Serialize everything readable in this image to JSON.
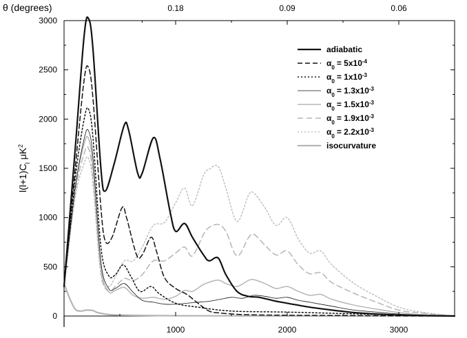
{
  "chart_data": {
    "type": "line",
    "xlabel": "",
    "ylabel": "l(l+1)C",
    "ylabel_sub": "l",
    "ylabel_unit": "μK",
    "ylabel_sup": "2",
    "top_axis_title": "θ (degrees)",
    "xlim": [
      0,
      3500
    ],
    "ylim": [
      0,
      3000
    ],
    "x_ticks": [
      1000,
      2000,
      3000
    ],
    "x_tick_labels": [
      "1000",
      "2000",
      "3000"
    ],
    "y_ticks": [
      0,
      500,
      1000,
      1500,
      2000,
      2500,
      3000
    ],
    "y_tick_labels": [
      "0",
      "500",
      "1000",
      "1500",
      "2000",
      "2500",
      "3000"
    ],
    "top_ticks": [
      {
        "label": "0.18",
        "x": 1000
      },
      {
        "label": "0.09",
        "x": 2000
      },
      {
        "label": "0.06",
        "x": 3000
      }
    ],
    "grid": false,
    "legend_position": "top-right",
    "series": [
      {
        "name": "adiabatic",
        "prefix": "",
        "sub": "",
        "mantissa": "",
        "exp": "",
        "color": "#111111",
        "stroke_width": 2.2,
        "dash": "",
        "x": [
          0,
          100,
          180,
          220,
          260,
          330,
          370,
          450,
          540,
          580,
          660,
          700,
          800,
          860,
          950,
          1000,
          1080,
          1150,
          1250,
          1300,
          1380,
          1450,
          1550,
          1650,
          1750,
          1900,
          2000,
          2200,
          2400,
          2600,
          2800,
          3000,
          3200,
          3500
        ],
        "y": [
          300,
          1700,
          2850,
          3020,
          2700,
          1500,
          1270,
          1550,
          1940,
          1880,
          1450,
          1450,
          1810,
          1600,
          1060,
          860,
          940,
          800,
          620,
          560,
          590,
          420,
          250,
          200,
          190,
          150,
          130,
          90,
          60,
          35,
          20,
          10,
          5,
          0
        ]
      },
      {
        "name": "= 5x10",
        "prefix": "α",
        "sub": "0",
        "mantissa": "= 5x10",
        "exp": "-4",
        "color": "#111111",
        "stroke_width": 1.5,
        "dash": "7,4",
        "x": [
          0,
          100,
          180,
          220,
          260,
          330,
          370,
          430,
          520,
          560,
          650,
          700,
          780,
          830,
          900,
          1000,
          1100,
          1200,
          1300,
          1400,
          1600,
          1800,
          2000,
          2500,
          3000,
          3500
        ],
        "y": [
          300,
          1500,
          2400,
          2520,
          2200,
          1100,
          760,
          800,
          1100,
          1000,
          620,
          620,
          800,
          650,
          390,
          280,
          220,
          130,
          50,
          30,
          15,
          10,
          8,
          5,
          2,
          0
        ]
      },
      {
        "name": "= 1x10",
        "prefix": "α",
        "sub": "0",
        "mantissa": "= 1x10",
        "exp": "-3",
        "color": "#111111",
        "stroke_width": 1.5,
        "dash": "2,3",
        "x": [
          0,
          100,
          180,
          220,
          260,
          330,
          400,
          460,
          530,
          600,
          680,
          780,
          850,
          1000,
          1200,
          1500,
          2000,
          2500,
          3000,
          3500
        ],
        "y": [
          300,
          1400,
          2000,
          2100,
          1800,
          700,
          410,
          420,
          520,
          400,
          250,
          300,
          230,
          130,
          90,
          50,
          40,
          25,
          10,
          0
        ]
      },
      {
        "name": "= 1.3x10",
        "prefix": "α",
        "sub": "0",
        "mantissa": "= 1.3x10",
        "exp": "-3",
        "color": "#111111",
        "stroke_width": 0.8,
        "dash": "",
        "x": [
          0,
          100,
          180,
          220,
          260,
          330,
          400,
          460,
          540,
          620,
          700,
          800,
          900,
          1000,
          1100,
          1200,
          1300,
          1400,
          1500,
          1600,
          1700,
          1800,
          1900,
          2000,
          2100,
          2200,
          2400,
          2600,
          2800,
          3000,
          3200,
          3500
        ],
        "y": [
          300,
          1300,
          1800,
          1880,
          1600,
          550,
          280,
          280,
          330,
          240,
          160,
          140,
          120,
          120,
          130,
          140,
          150,
          170,
          190,
          180,
          210,
          200,
          180,
          190,
          160,
          140,
          100,
          60,
          40,
          20,
          10,
          0
        ]
      },
      {
        "name": "= 1.5x10",
        "prefix": "α",
        "sub": "0",
        "mantissa": "= 1.5x10",
        "exp": "-3",
        "color": "#b5b5b5",
        "stroke_width": 1.5,
        "dash": "",
        "x": [
          0,
          100,
          180,
          220,
          260,
          330,
          400,
          460,
          540,
          620,
          700,
          800,
          900,
          1000,
          1080,
          1150,
          1250,
          1350,
          1400,
          1450,
          1550,
          1650,
          1700,
          1800,
          1900,
          2000,
          2100,
          2200,
          2300,
          2400,
          2600,
          2800,
          3000,
          3200,
          3500
        ],
        "y": [
          300,
          1300,
          1750,
          1800,
          1500,
          500,
          250,
          260,
          290,
          210,
          180,
          190,
          170,
          200,
          260,
          250,
          320,
          360,
          360,
          330,
          300,
          360,
          370,
          330,
          280,
          300,
          250,
          210,
          220,
          170,
          110,
          70,
          35,
          15,
          0
        ]
      },
      {
        "name": "= 1.9x10",
        "prefix": "α",
        "sub": "0",
        "mantissa": "= 1.9x10",
        "exp": "-3",
        "color": "#b5b5b5",
        "stroke_width": 1.5,
        "dash": "8,5",
        "x": [
          0,
          100,
          180,
          220,
          260,
          330,
          400,
          460,
          540,
          620,
          700,
          800,
          900,
          1000,
          1080,
          1150,
          1250,
          1300,
          1380,
          1450,
          1550,
          1650,
          1700,
          1800,
          1900,
          2000,
          2100,
          2200,
          2300,
          2400,
          2600,
          2800,
          3000,
          3200,
          3500
        ],
        "y": [
          300,
          1250,
          1650,
          1700,
          1420,
          450,
          250,
          300,
          380,
          360,
          420,
          560,
          560,
          640,
          700,
          610,
          830,
          900,
          930,
          860,
          610,
          790,
          830,
          720,
          620,
          660,
          520,
          430,
          440,
          340,
          230,
          140,
          60,
          30,
          0
        ]
      },
      {
        "name": "= 2.2x10",
        "prefix": "α",
        "sub": "0",
        "mantissa": "= 2.2x10",
        "exp": "-3",
        "color": "#c0c0c0",
        "stroke_width": 1.5,
        "dash": "2,3",
        "x": [
          0,
          100,
          180,
          220,
          260,
          330,
          400,
          460,
          540,
          620,
          700,
          800,
          900,
          1000,
          1080,
          1150,
          1250,
          1300,
          1380,
          1450,
          1550,
          1650,
          1700,
          1800,
          1900,
          2000,
          2100,
          2200,
          2300,
          2400,
          2600,
          2800,
          3000,
          3200,
          3500
        ],
        "y": [
          300,
          1200,
          1550,
          1600,
          1330,
          420,
          300,
          400,
          560,
          560,
          700,
          920,
          950,
          1150,
          1300,
          1120,
          1430,
          1490,
          1520,
          1300,
          960,
          1220,
          1250,
          1100,
          920,
          1000,
          780,
          640,
          660,
          520,
          330,
          200,
          90,
          40,
          0
        ]
      },
      {
        "name": "isocurvature",
        "prefix": "",
        "sub": "",
        "mantissa": "",
        "exp": "",
        "color": "#b5b5b5",
        "stroke_width": 2.2,
        "dash": "",
        "x": [
          0,
          50,
          100,
          150,
          200,
          260,
          300,
          400,
          500,
          600,
          800,
          1000,
          1500,
          2000,
          3500
        ],
        "y": [
          330,
          180,
          70,
          50,
          60,
          55,
          35,
          15,
          10,
          8,
          5,
          3,
          2,
          1,
          0
        ]
      }
    ]
  }
}
